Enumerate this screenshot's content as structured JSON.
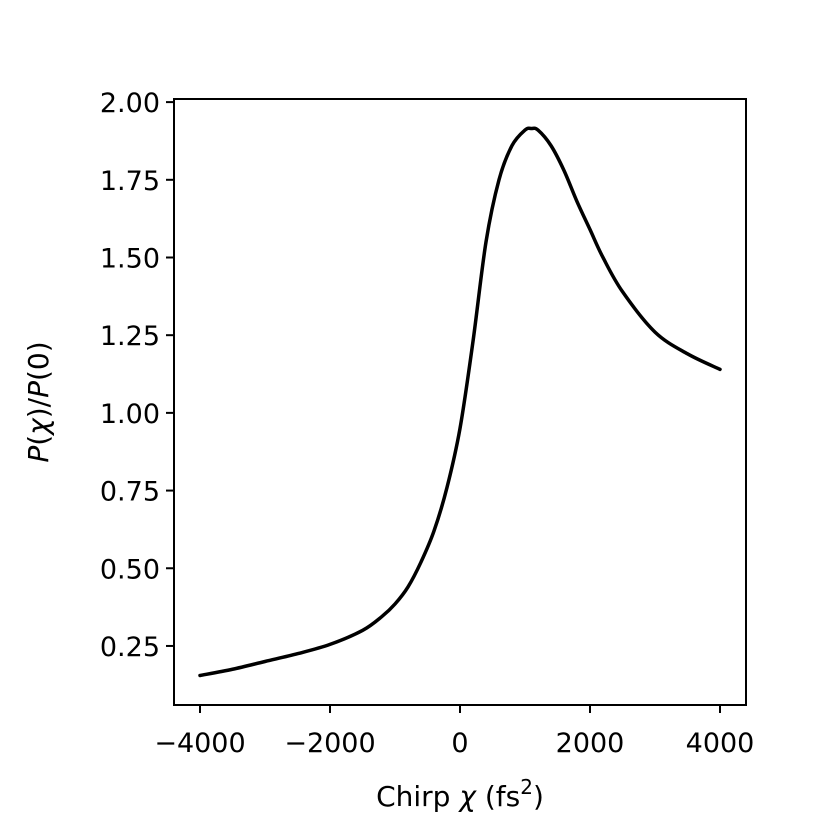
{
  "chart_data": {
    "type": "line",
    "xlabel": {
      "prefix": "Chirp ",
      "symbol": "χ",
      "unit_open": " (fs",
      "unit_sup": "2",
      "unit_close": ")"
    },
    "ylabel": {
      "p1": "P",
      "o1": "(",
      "chi": "χ",
      "c1": ")/",
      "p2": "P",
      "tail": "(0)"
    },
    "xlim": [
      -4400,
      4400
    ],
    "ylim": [
      0.06,
      2.01
    ],
    "x_ticks": [
      {
        "value": -4000,
        "label": "−4000"
      },
      {
        "value": -2000,
        "label": "−2000"
      },
      {
        "value": 0,
        "label": "0"
      },
      {
        "value": 2000,
        "label": "2000"
      },
      {
        "value": 4000,
        "label": "4000"
      }
    ],
    "y_ticks": [
      {
        "value": 0.25,
        "label": "0.25"
      },
      {
        "value": 0.5,
        "label": "0.50"
      },
      {
        "value": 0.75,
        "label": "0.75"
      },
      {
        "value": 1.0,
        "label": "1.00"
      },
      {
        "value": 1.25,
        "label": "1.25"
      },
      {
        "value": 1.5,
        "label": "1.50"
      },
      {
        "value": 1.75,
        "label": "1.75"
      },
      {
        "value": 2.0,
        "label": "2.00"
      }
    ],
    "grid": false,
    "legend": "none",
    "series": [
      {
        "color": "#000000",
        "x": [
          -4000,
          -3500,
          -3000,
          -2500,
          -2000,
          -1500,
          -1200,
          -1000,
          -800,
          -600,
          -400,
          -200,
          0,
          200,
          400,
          600,
          800,
          1000,
          1100,
          1200,
          1400,
          1600,
          1800,
          2000,
          2200,
          2500,
          3000,
          3500,
          4000
        ],
        "y": [
          0.155,
          0.175,
          0.2,
          0.225,
          0.255,
          0.3,
          0.345,
          0.385,
          0.44,
          0.52,
          0.62,
          0.76,
          0.95,
          1.23,
          1.55,
          1.75,
          1.86,
          1.91,
          1.915,
          1.91,
          1.86,
          1.78,
          1.68,
          1.59,
          1.5,
          1.39,
          1.26,
          1.19,
          1.14
        ]
      }
    ]
  }
}
